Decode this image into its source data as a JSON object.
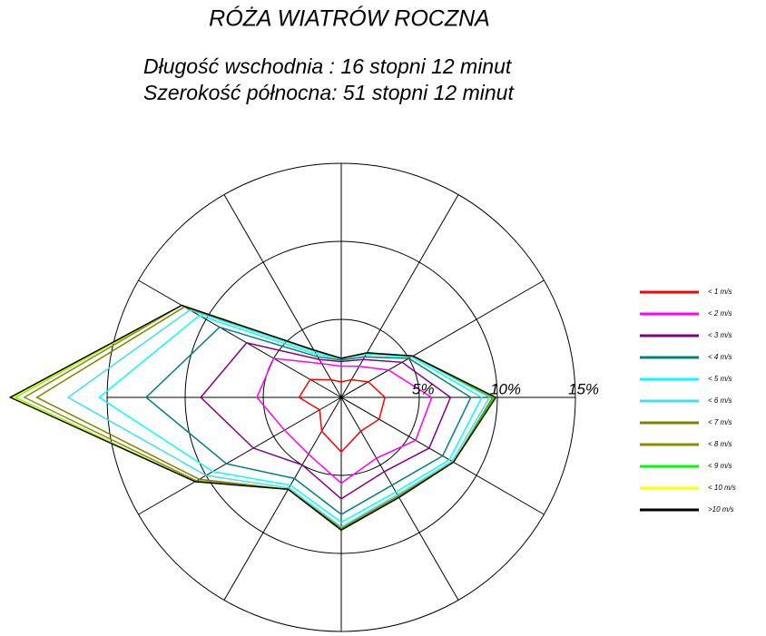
{
  "chart_data": {
    "type": "radar",
    "title": "RÓŻA WIATRÓW ROCZNA",
    "subtitles": [
      "Długość wschodnia :  16 stopni  12 minut",
      "Szerokość północna:  51 stopni  12 minut"
    ],
    "rlim": [
      0,
      15
    ],
    "rticks": [
      {
        "value": 5,
        "label": "5%"
      },
      {
        "value": 10,
        "label": "10%"
      },
      {
        "value": 15,
        "label": "15%"
      }
    ],
    "series": [
      {
        "name": "< 1 m/s",
        "color": "#ff0000",
        "values": [
          1.0,
          1.3,
          2.0,
          2.8,
          2.8,
          2.5,
          3.5,
          2.5,
          1.6,
          2.7,
          2.3,
          1.3
        ]
      },
      {
        "name": "< 2 m/s",
        "color": "#ff00ff",
        "values": [
          2.0,
          2.3,
          3.5,
          5.8,
          5.5,
          4.5,
          5.5,
          4.2,
          4.2,
          5.4,
          5.0,
          2.5
        ]
      },
      {
        "name": "< 3 m/s",
        "color": "#800080",
        "values": [
          2.3,
          2.8,
          4.5,
          7.0,
          6.5,
          5.5,
          6.5,
          5.0,
          6.5,
          9.0,
          7.0,
          2.8
        ]
      },
      {
        "name": "< 4 m/s",
        "color": "#008080",
        "values": [
          2.4,
          3.0,
          5.0,
          8.3,
          7.5,
          6.5,
          7.5,
          6.0,
          8.5,
          12.5,
          9.0,
          3.0
        ]
      },
      {
        "name": "< 5 m/s",
        "color": "#00ffff",
        "values": [
          2.5,
          3.2,
          5.2,
          9.0,
          8.0,
          7.0,
          8.0,
          6.5,
          9.5,
          15.5,
          10.5,
          3.2
        ]
      },
      {
        "name": "< 6 m/s",
        "color": "#40e0e8",
        "values": [
          2.5,
          3.3,
          5.3,
          9.5,
          8.2,
          7.2,
          8.3,
          6.7,
          10.0,
          17.5,
          11.2,
          3.4
        ]
      },
      {
        "name": "< 7 m/s",
        "color": "#808000",
        "values": [
          2.5,
          3.3,
          5.3,
          9.7,
          8.3,
          7.3,
          8.4,
          6.8,
          10.5,
          19.5,
          11.6,
          3.5
        ]
      },
      {
        "name": "< 8 m/s",
        "color": "#8b8b00",
        "values": [
          2.5,
          3.3,
          5.3,
          9.8,
          8.3,
          7.4,
          8.5,
          6.8,
          10.7,
          20.3,
          11.8,
          3.5
        ]
      },
      {
        "name": "< 9 m/s",
        "color": "#00ff00",
        "values": [
          2.5,
          3.3,
          5.3,
          9.8,
          8.3,
          7.4,
          8.5,
          6.8,
          10.8,
          20.9,
          11.8,
          3.5
        ]
      },
      {
        "name": "< 10 m/s",
        "color": "#ffff00",
        "values": [
          2.5,
          3.3,
          5.3,
          9.9,
          8.3,
          7.4,
          8.5,
          6.8,
          10.8,
          21.0,
          11.8,
          3.5
        ]
      },
      {
        "name": ">10 m/s",
        "color": "#000000",
        "values": [
          2.5,
          3.3,
          5.3,
          9.9,
          8.3,
          7.4,
          8.5,
          6.8,
          10.8,
          21.2,
          11.8,
          3.5
        ]
      }
    ]
  }
}
